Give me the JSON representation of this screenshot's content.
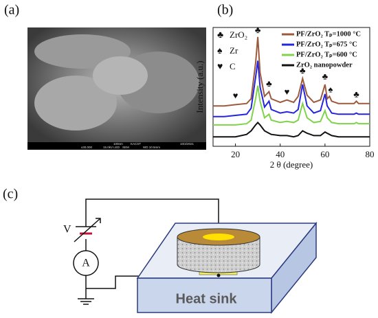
{
  "panel_labels": [
    "(a)",
    "(b)",
    "(c)"
  ],
  "sem": {
    "info": [
      "100nm",
      "KACST",
      "10/4/2021",
      "x30,000",
      "15.0kV LED",
      "SEM",
      "WD 10.5mm"
    ]
  },
  "chart_data": {
    "type": "line",
    "xlabel": "2 θ (degree)",
    "ylabel": "Intensity (a.u.)",
    "xlim": [
      10,
      80
    ],
    "xticks": [
      20,
      40,
      60,
      80
    ],
    "ylim": [
      0,
      100
    ],
    "x": [
      10,
      15,
      20,
      25,
      27,
      29,
      30,
      31,
      33,
      35,
      36,
      40,
      43,
      46,
      48,
      50,
      52,
      55,
      58,
      60,
      61,
      62,
      63,
      66,
      70,
      73,
      74,
      75,
      80
    ],
    "series": [
      {
        "name": "PF/ZrO₂ Tₚ=1000 °C",
        "color": "#9b5a3c",
        "values": [
          34,
          34,
          35,
          36,
          40,
          70,
          92,
          62,
          42,
          46,
          40,
          37,
          39,
          37,
          42,
          57,
          43,
          37,
          39,
          52,
          40,
          42,
          38,
          36,
          36,
          36,
          38,
          36,
          36
        ]
      },
      {
        "name": "PF/ZrO₂ Tₚ=675 °C",
        "color": "#2424e0",
        "values": [
          25,
          25,
          26,
          27,
          32,
          58,
          72,
          50,
          33,
          38,
          31,
          28,
          29,
          28,
          31,
          52,
          34,
          28,
          30,
          44,
          34,
          31,
          28,
          27,
          27,
          27,
          28,
          27,
          27
        ]
      },
      {
        "name": "PF/ZrO₂ Tₚ=600 °C",
        "color": "#7fd34a",
        "values": [
          18,
          18,
          18,
          19,
          22,
          40,
          51,
          38,
          24,
          27,
          22,
          20,
          21,
          20,
          22,
          36,
          24,
          20,
          21,
          30,
          24,
          22,
          20,
          19,
          19,
          19,
          20,
          19,
          19
        ]
      },
      {
        "name": "ZrO₂ nanopowder",
        "color": "#111111",
        "values": [
          8,
          8,
          8,
          10,
          13,
          18,
          20,
          18,
          13,
          11,
          10,
          9,
          9,
          8,
          9,
          13,
          11,
          9,
          9,
          12,
          11,
          10,
          9,
          8,
          8,
          8,
          8,
          8,
          8
        ]
      }
    ],
    "phase_legend": [
      {
        "symbol": "♣",
        "label": "ZrO₂"
      },
      {
        "symbol": "♠",
        "label": "Zr"
      },
      {
        "symbol": "♥",
        "label": "C"
      }
    ],
    "annotations": [
      {
        "text": "♥",
        "x": 20,
        "y": 42
      },
      {
        "text": "♣",
        "x": 30,
        "y": 97
      },
      {
        "text": "♣",
        "x": 35,
        "y": 52
      },
      {
        "text": "♥",
        "x": 43,
        "y": 45
      },
      {
        "text": "♣",
        "x": 50,
        "y": 63
      },
      {
        "text": "♣",
        "x": 60,
        "y": 58
      },
      {
        "text": "♠",
        "x": 62.5,
        "y": 47
      },
      {
        "text": "♣",
        "x": 74,
        "y": 43
      }
    ]
  },
  "diagram": {
    "voltage": "V",
    "ammeter": "A",
    "heat_sink": "Heat sink"
  }
}
